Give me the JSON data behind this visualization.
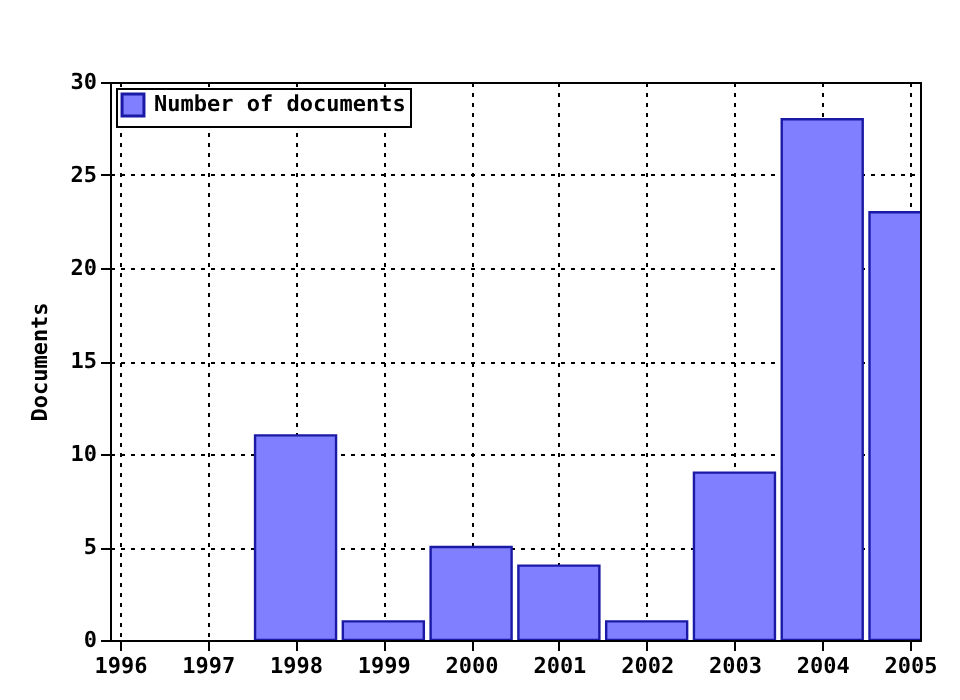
{
  "chart_data": {
    "type": "bar",
    "ylabel": "Documents",
    "x": [
      1996,
      1997,
      1998,
      1999,
      2000,
      2001,
      2002,
      2003,
      2004,
      2005
    ],
    "series": [
      {
        "name": "Number of documents",
        "color": "#7f7fff",
        "values": [
          0,
          0,
          11,
          1,
          5,
          4,
          1,
          9,
          28,
          23
        ]
      }
    ],
    "xlim": [
      1996,
      2005
    ],
    "xticks": [
      1996,
      1997,
      1998,
      1999,
      2000,
      2001,
      2002,
      2003,
      2004,
      2005
    ],
    "ylim": [
      0,
      30
    ],
    "yticks": [
      0,
      5,
      10,
      15,
      20,
      25,
      30
    ],
    "grid": true,
    "legend": "top left"
  }
}
